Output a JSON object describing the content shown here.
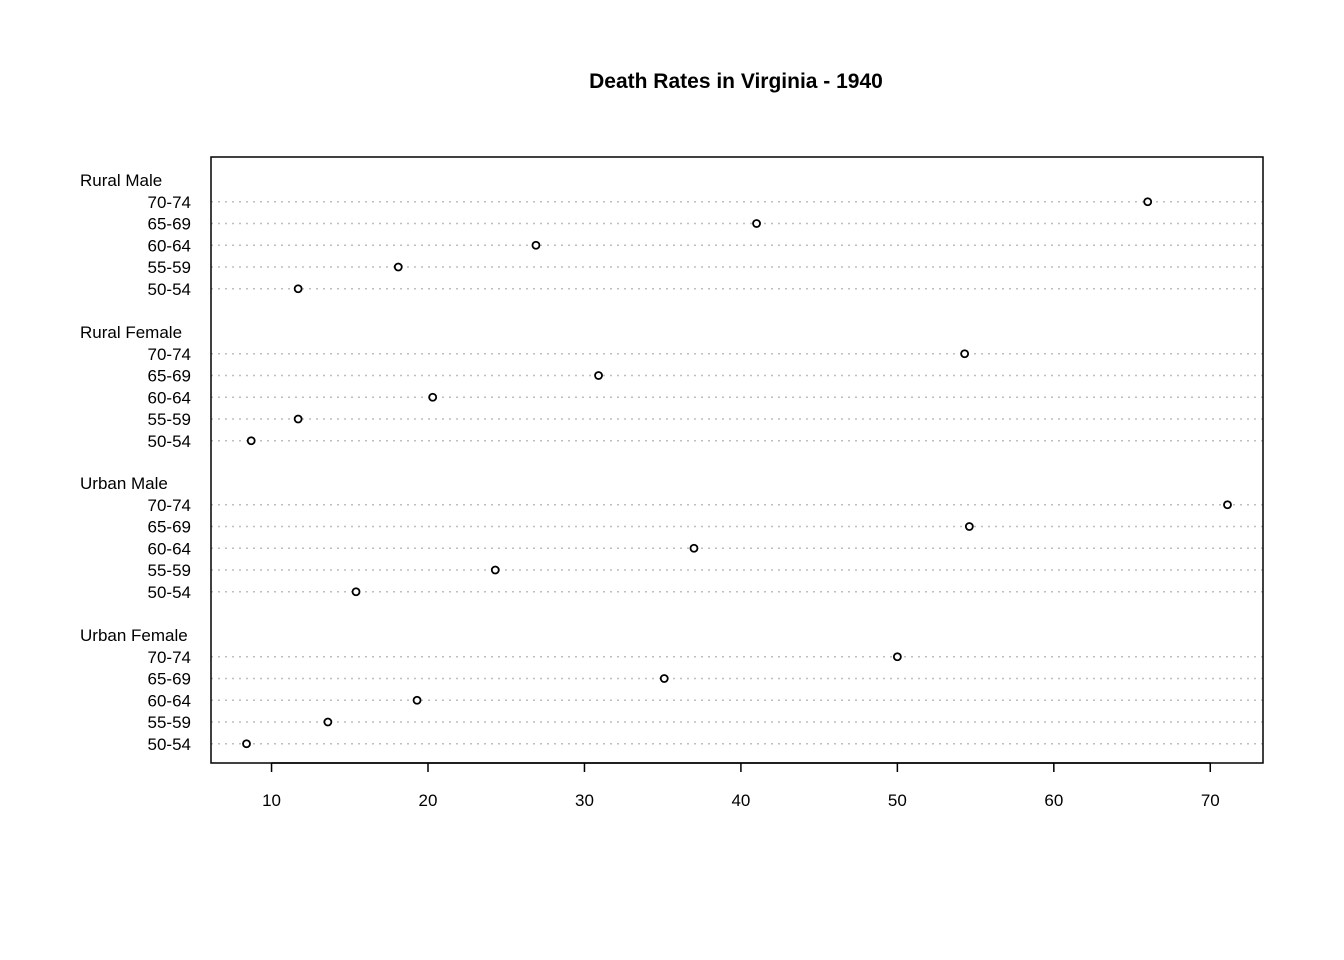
{
  "chart_data": {
    "type": "scatter",
    "subtype": "dotchart",
    "title": "Death Rates in Virginia - 1940",
    "xlabel": "",
    "ylabel": "",
    "xlim": [
      6.13,
      73.37
    ],
    "xticks": [
      10,
      20,
      30,
      40,
      50,
      60,
      70
    ],
    "grid": "dotted horizontal lines",
    "legend": "none",
    "groups": [
      {
        "name": "Rural Male",
        "categories": [
          "70-74",
          "65-69",
          "60-64",
          "55-59",
          "50-54"
        ],
        "values": [
          66.0,
          41.0,
          26.9,
          18.1,
          11.7
        ]
      },
      {
        "name": "Rural Female",
        "categories": [
          "70-74",
          "65-69",
          "60-64",
          "55-59",
          "50-54"
        ],
        "values": [
          54.3,
          30.9,
          20.3,
          11.7,
          8.7
        ]
      },
      {
        "name": "Urban Male",
        "categories": [
          "70-74",
          "65-69",
          "60-64",
          "55-59",
          "50-54"
        ],
        "values": [
          71.1,
          54.6,
          37.0,
          24.3,
          15.4
        ]
      },
      {
        "name": "Urban Female",
        "categories": [
          "70-74",
          "65-69",
          "60-64",
          "55-59",
          "50-54"
        ],
        "values": [
          50.0,
          35.1,
          19.3,
          13.6,
          8.4
        ]
      }
    ]
  }
}
